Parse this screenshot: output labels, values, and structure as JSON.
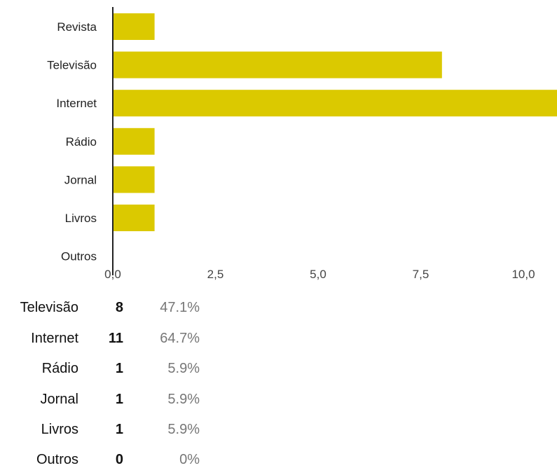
{
  "chart_data": {
    "type": "bar",
    "orientation": "horizontal",
    "categories": [
      "Revista",
      "Televisão",
      "Internet",
      "Rádio",
      "Jornal",
      "Livros",
      "Outros"
    ],
    "values": [
      1,
      8,
      11,
      1,
      1,
      1,
      0
    ],
    "x_ticks": [
      "0,0",
      "2,5",
      "5,0",
      "7,5",
      "10,0"
    ],
    "x_tick_values": [
      0,
      2.5,
      5,
      7.5,
      10
    ],
    "xlim": [
      0,
      11
    ],
    "bar_color": "#dbc900",
    "grid": false
  },
  "summary_table": {
    "rows": [
      {
        "label": "Televisão",
        "count": "8",
        "percent": "47.1%"
      },
      {
        "label": "Internet",
        "count": "11",
        "percent": "64.7%"
      },
      {
        "label": "Rádio",
        "count": "1",
        "percent": "5.9%"
      },
      {
        "label": "Jornal",
        "count": "1",
        "percent": "5.9%"
      },
      {
        "label": "Livros",
        "count": "1",
        "percent": "5.9%"
      },
      {
        "label": "Outros",
        "count": "0",
        "percent": "0%"
      }
    ]
  }
}
